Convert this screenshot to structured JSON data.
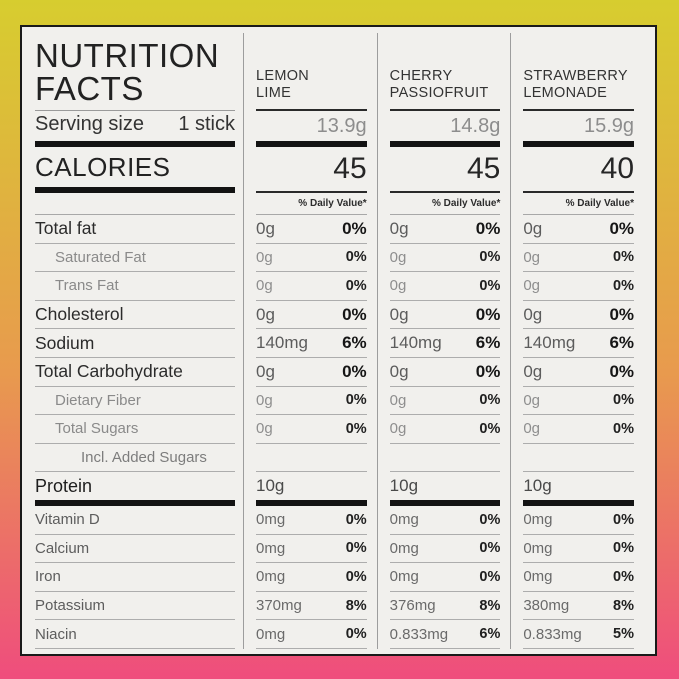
{
  "frame": {
    "gradient_top": "#d7cd2f",
    "gradient_bottom": "#ef4d7d"
  },
  "card": {
    "title_line1": "NUTRITION",
    "title_line2": "FACTS",
    "serving_label": "Serving size",
    "serving_value": "1 stick",
    "calories_label": "CALORIES",
    "daily_value_note": "% Daily Value*"
  },
  "products": [
    {
      "name_line1": "LEMON",
      "name_line2": "LIME",
      "serving_weight": "13.9g",
      "calories": "45"
    },
    {
      "name_line1": "CHERRY",
      "name_line2": "PASSIOFRUIT",
      "serving_weight": "14.8g",
      "calories": "45"
    },
    {
      "name_line1": "STRAWBERRY",
      "name_line2": "LEMONADE",
      "serving_weight": "15.9g",
      "calories": "40"
    }
  ],
  "rows": [
    {
      "label": "Total fat",
      "style": "main",
      "values": [
        [
          "0g",
          "0%"
        ],
        [
          "0g",
          "0%"
        ],
        [
          "0g",
          "0%"
        ]
      ]
    },
    {
      "label": "Saturated Fat",
      "style": "sub",
      "values": [
        [
          "0g",
          "0%"
        ],
        [
          "0g",
          "0%"
        ],
        [
          "0g",
          "0%"
        ]
      ]
    },
    {
      "label": "Trans Fat",
      "style": "sub",
      "values": [
        [
          "0g",
          "0%"
        ],
        [
          "0g",
          "0%"
        ],
        [
          "0g",
          "0%"
        ]
      ]
    },
    {
      "label": "Cholesterol",
      "style": "main",
      "values": [
        [
          "0g",
          "0%"
        ],
        [
          "0g",
          "0%"
        ],
        [
          "0g",
          "0%"
        ]
      ]
    },
    {
      "label": "Sodium",
      "style": "main",
      "values": [
        [
          "140mg",
          "6%"
        ],
        [
          "140mg",
          "6%"
        ],
        [
          "140mg",
          "6%"
        ]
      ]
    },
    {
      "label": "Total Carbohydrate",
      "style": "main",
      "values": [
        [
          "0g",
          "0%"
        ],
        [
          "0g",
          "0%"
        ],
        [
          "0g",
          "0%"
        ]
      ]
    },
    {
      "label": "Dietary Fiber",
      "style": "sub",
      "values": [
        [
          "0g",
          "0%"
        ],
        [
          "0g",
          "0%"
        ],
        [
          "0g",
          "0%"
        ]
      ]
    },
    {
      "label": "Total Sugars",
      "style": "sub",
      "values": [
        [
          "0g",
          "0%"
        ],
        [
          "0g",
          "0%"
        ],
        [
          "0g",
          "0%"
        ]
      ]
    },
    {
      "label": "Incl. Added Sugars",
      "style": "sub2",
      "values": [
        [
          "",
          ""
        ],
        [
          "",
          ""
        ],
        [
          "",
          ""
        ]
      ]
    },
    {
      "label": "Protein",
      "style": "protein",
      "values": [
        [
          "10g",
          ""
        ],
        [
          "10g",
          ""
        ],
        [
          "10g",
          ""
        ]
      ]
    },
    {
      "label": "Vitamin D",
      "style": "micro",
      "values": [
        [
          "0mg",
          "0%"
        ],
        [
          "0mg",
          "0%"
        ],
        [
          "0mg",
          "0%"
        ]
      ]
    },
    {
      "label": "Calcium",
      "style": "micro",
      "values": [
        [
          "0mg",
          "0%"
        ],
        [
          "0mg",
          "0%"
        ],
        [
          "0mg",
          "0%"
        ]
      ]
    },
    {
      "label": "Iron",
      "style": "micro",
      "values": [
        [
          "0mg",
          "0%"
        ],
        [
          "0mg",
          "0%"
        ],
        [
          "0mg",
          "0%"
        ]
      ]
    },
    {
      "label": "Potassium",
      "style": "micro",
      "values": [
        [
          "370mg",
          "8%"
        ],
        [
          "376mg",
          "8%"
        ],
        [
          "380mg",
          "8%"
        ]
      ]
    },
    {
      "label": "Niacin",
      "style": "micro",
      "values": [
        [
          "0mg",
          "0%"
        ],
        [
          "0.833mg",
          "6%"
        ],
        [
          "0.833mg",
          "5%"
        ]
      ]
    }
  ]
}
